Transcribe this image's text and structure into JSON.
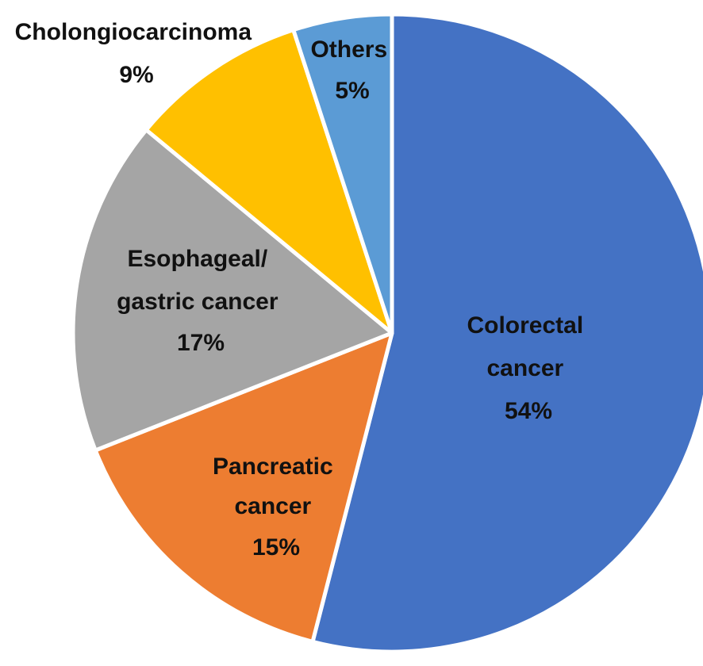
{
  "chart_data": {
    "type": "pie",
    "title": "",
    "legend": "none",
    "slices": [
      {
        "name": "Colorectal cancer",
        "label_lines": [
          "Colorectal",
          "cancer"
        ],
        "value": 54,
        "value_label": "54%",
        "color": "#4472C4"
      },
      {
        "name": "Pancreatic cancer",
        "label_lines": [
          "Pancreatic",
          "cancer"
        ],
        "value": 15,
        "value_label": "15%",
        "color": "#ED7D31"
      },
      {
        "name": "Esophageal/ gastric cancer",
        "label_lines": [
          "Esophageal/",
          "gastric cancer"
        ],
        "value": 17,
        "value_label": "17%",
        "color": "#A5A5A5"
      },
      {
        "name": "Cholongiocarcinoma",
        "label_lines": [
          "Cholongiocarcinoma"
        ],
        "value": 9,
        "value_label": "9%",
        "color": "#FFC000"
      },
      {
        "name": "Others",
        "label_lines": [
          "Others"
        ],
        "value": 5,
        "value_label": "5%",
        "color": "#5B9BD5"
      }
    ]
  }
}
